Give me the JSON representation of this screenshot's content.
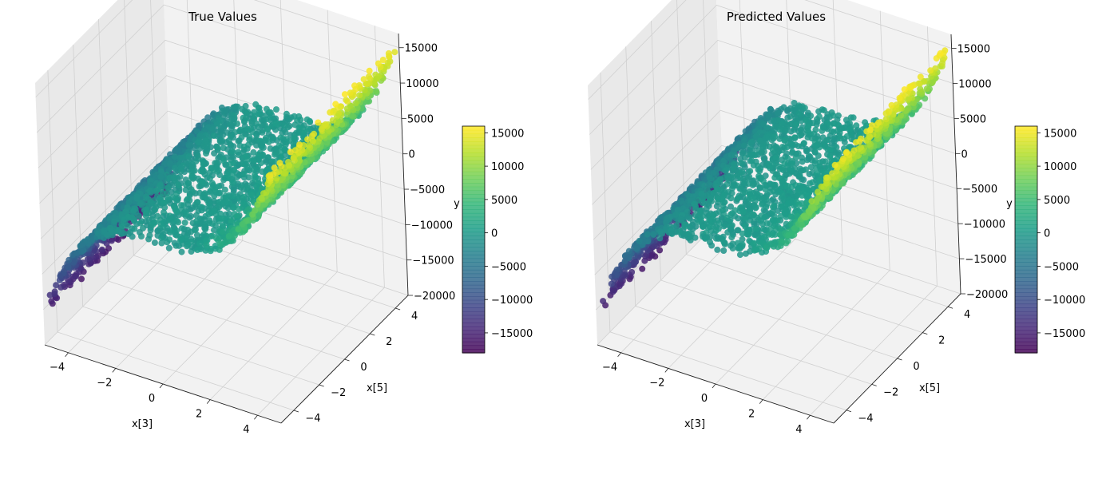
{
  "chart_data": [
    {
      "type": "scatter",
      "title": "True Values",
      "xlabel": "x[3]",
      "ylabel": "x[5]",
      "zlabel": "y",
      "xlim": [
        -5,
        5
      ],
      "ylim": [
        -5,
        5
      ],
      "zlim": [
        -20000,
        17000
      ],
      "x_ticks": [
        "−4",
        "−2",
        "0",
        "2",
        "4"
      ],
      "y_ticks": [
        "−4",
        "−2",
        "0",
        "2",
        "4"
      ],
      "z_ticks": [
        "−20000",
        "−15000",
        "−10000",
        "−5000",
        "0",
        "5000",
        "10000",
        "15000"
      ],
      "surface": "y ≈ 125 * x[3]^3 over x[3] in [-5,5], x[5] in [-5,5]",
      "colorbar": {
        "colormap": "viridis",
        "range": [
          -18000,
          16000
        ],
        "ticks": [
          "−15000",
          "−10000",
          "−5000",
          "0",
          "5000",
          "10000",
          "15000"
        ]
      },
      "grid": true
    },
    {
      "type": "scatter",
      "title": "Predicted Values",
      "xlabel": "x[3]",
      "ylabel": "x[5]",
      "zlabel": "y",
      "xlim": [
        -5,
        5
      ],
      "ylim": [
        -5,
        5
      ],
      "zlim": [
        -20000,
        17000
      ],
      "x_ticks": [
        "−4",
        "−2",
        "0",
        "2",
        "4"
      ],
      "y_ticks": [
        "−4",
        "−2",
        "0",
        "2",
        "4"
      ],
      "z_ticks": [
        "−20000",
        "−15000",
        "−10000",
        "−5000",
        "0",
        "5000",
        "10000",
        "15000"
      ],
      "surface": "y ≈ 125 * x[3]^3 over x[3] in [-5,5], x[5] in [-5,5]",
      "colorbar": {
        "colormap": "viridis",
        "range": [
          -18000,
          16000
        ],
        "ticks": [
          "−15000",
          "−10000",
          "−5000",
          "0",
          "5000",
          "10000",
          "15000"
        ]
      },
      "grid": true
    }
  ],
  "colors": {
    "pane": "#f2f2f2",
    "pane_side": "#e9e9e9",
    "grid": "#d0d0d0"
  }
}
